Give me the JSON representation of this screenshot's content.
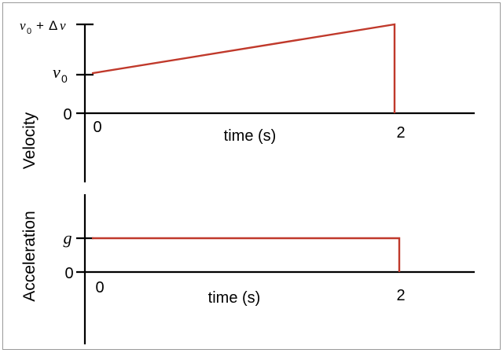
{
  "chart_data": [
    {
      "type": "line",
      "title": "",
      "xlabel": "time (s)",
      "ylabel": "Velocity",
      "x_tick_labels": [
        "0",
        "2"
      ],
      "y_tick_labels": [
        "0",
        "v0",
        "v0 + Δv"
      ],
      "y_tick_parts": {
        "zero": "0",
        "v0_letter": "v",
        "v0_sub": "0",
        "top_letter": "v",
        "top_sub": "0",
        "top_plus": "+",
        "top_delta": "Δ",
        "top_v": "v"
      },
      "xlim": [
        0,
        2.5
      ],
      "ylim": [
        0,
        1
      ],
      "series": [
        {
          "name": "velocity",
          "x": [
            0,
            2,
            2
          ],
          "y": [
            0.45,
            1.0,
            0
          ],
          "color": "#c0392b"
        }
      ],
      "grid": false,
      "legend": "none"
    },
    {
      "type": "line",
      "title": "",
      "xlabel": "time (s)",
      "ylabel": "Acceleration",
      "x_tick_labels": [
        "0",
        "2"
      ],
      "y_tick_labels": [
        "0",
        "g"
      ],
      "y_tick_parts": {
        "zero": "0",
        "g": "g"
      },
      "xlim": [
        0,
        2.5
      ],
      "ylim": [
        0,
        1
      ],
      "series": [
        {
          "name": "acceleration",
          "x": [
            0,
            2,
            2
          ],
          "y": [
            1.0,
            1.0,
            0
          ],
          "color": "#c0392b"
        }
      ],
      "grid": false,
      "legend": "none"
    }
  ]
}
